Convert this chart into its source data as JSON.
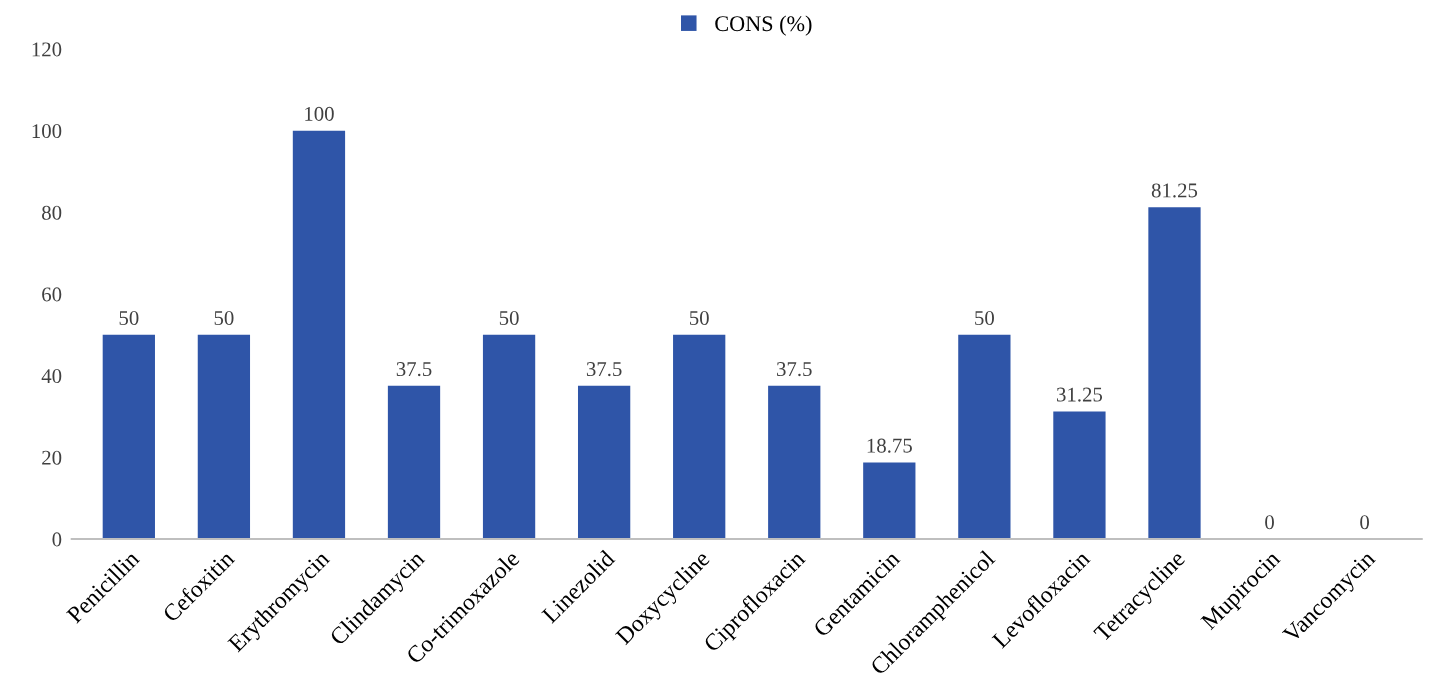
{
  "chart_data": {
    "type": "bar",
    "categories": [
      "Penicillin",
      "Cefoxitin",
      "Erythromycin",
      "Clindamycin",
      "Co-trimoxazole",
      "Linezolid",
      "Doxycycline",
      "Ciprofloxacin",
      "Gentamicin",
      "Chloramphenicol",
      "Levofloxacin",
      "Tetracycline",
      "Mupirocin",
      "Vancomycin"
    ],
    "series": [
      {
        "name": "CONS (%)",
        "color": "#2f55a8",
        "values": [
          50,
          50,
          100,
          37.5,
          50,
          37.5,
          50,
          37.5,
          18.75,
          50,
          31.25,
          81.25,
          0,
          0
        ]
      }
    ],
    "ylim": [
      0,
      120
    ],
    "yticks": [
      0,
      20,
      40,
      60,
      80,
      100,
      120
    ],
    "data_labels": true,
    "legend": "top",
    "grid": false
  }
}
